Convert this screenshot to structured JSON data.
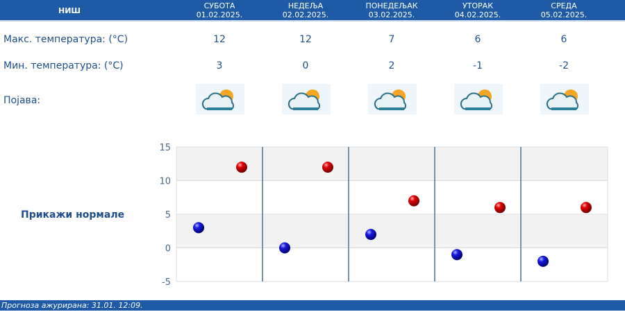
{
  "header": {
    "city": "НИШ",
    "days": [
      {
        "name": "СУБОТА",
        "date": "01.02.2025."
      },
      {
        "name": "НЕДЕЉА",
        "date": "02.02.2025."
      },
      {
        "name": "ПОНЕДЕЉАК",
        "date": "03.02.2025."
      },
      {
        "name": "УТОРАК",
        "date": "04.02.2025."
      },
      {
        "name": "СРЕДА",
        "date": "05.02.2025."
      }
    ]
  },
  "rows": {
    "max_label": "Макс. температура: (°C)",
    "min_label": "Мин. температура: (°C)",
    "phenomenon_label": "Појава:",
    "max": [
      "12",
      "12",
      "7",
      "6",
      "6"
    ],
    "min": [
      "3",
      "0",
      "2",
      "-1",
      "-2"
    ],
    "icons": [
      "partly-cloudy-icon",
      "partly-cloudy-icon",
      "partly-cloudy-icon",
      "partly-cloudy-icon",
      "mostly-sunny-icon"
    ]
  },
  "show_normals": "Прикажи нормале",
  "chart_data": {
    "type": "scatter",
    "ylim": [
      -5,
      15
    ],
    "yticks": [
      "15",
      "10",
      "5",
      "0",
      "-5"
    ],
    "series": [
      {
        "color": "#0000cc",
        "values": [
          3,
          0,
          2,
          -1,
          -2
        ]
      },
      {
        "color": "#dd0000",
        "values": [
          12,
          12,
          7,
          6,
          6
        ]
      }
    ],
    "grid": true
  },
  "footer": "Прогноза ажурирана:  31.01. 12:09.",
  "colors": {
    "header": "#1f5aa6",
    "text": "#1f4e8c"
  }
}
